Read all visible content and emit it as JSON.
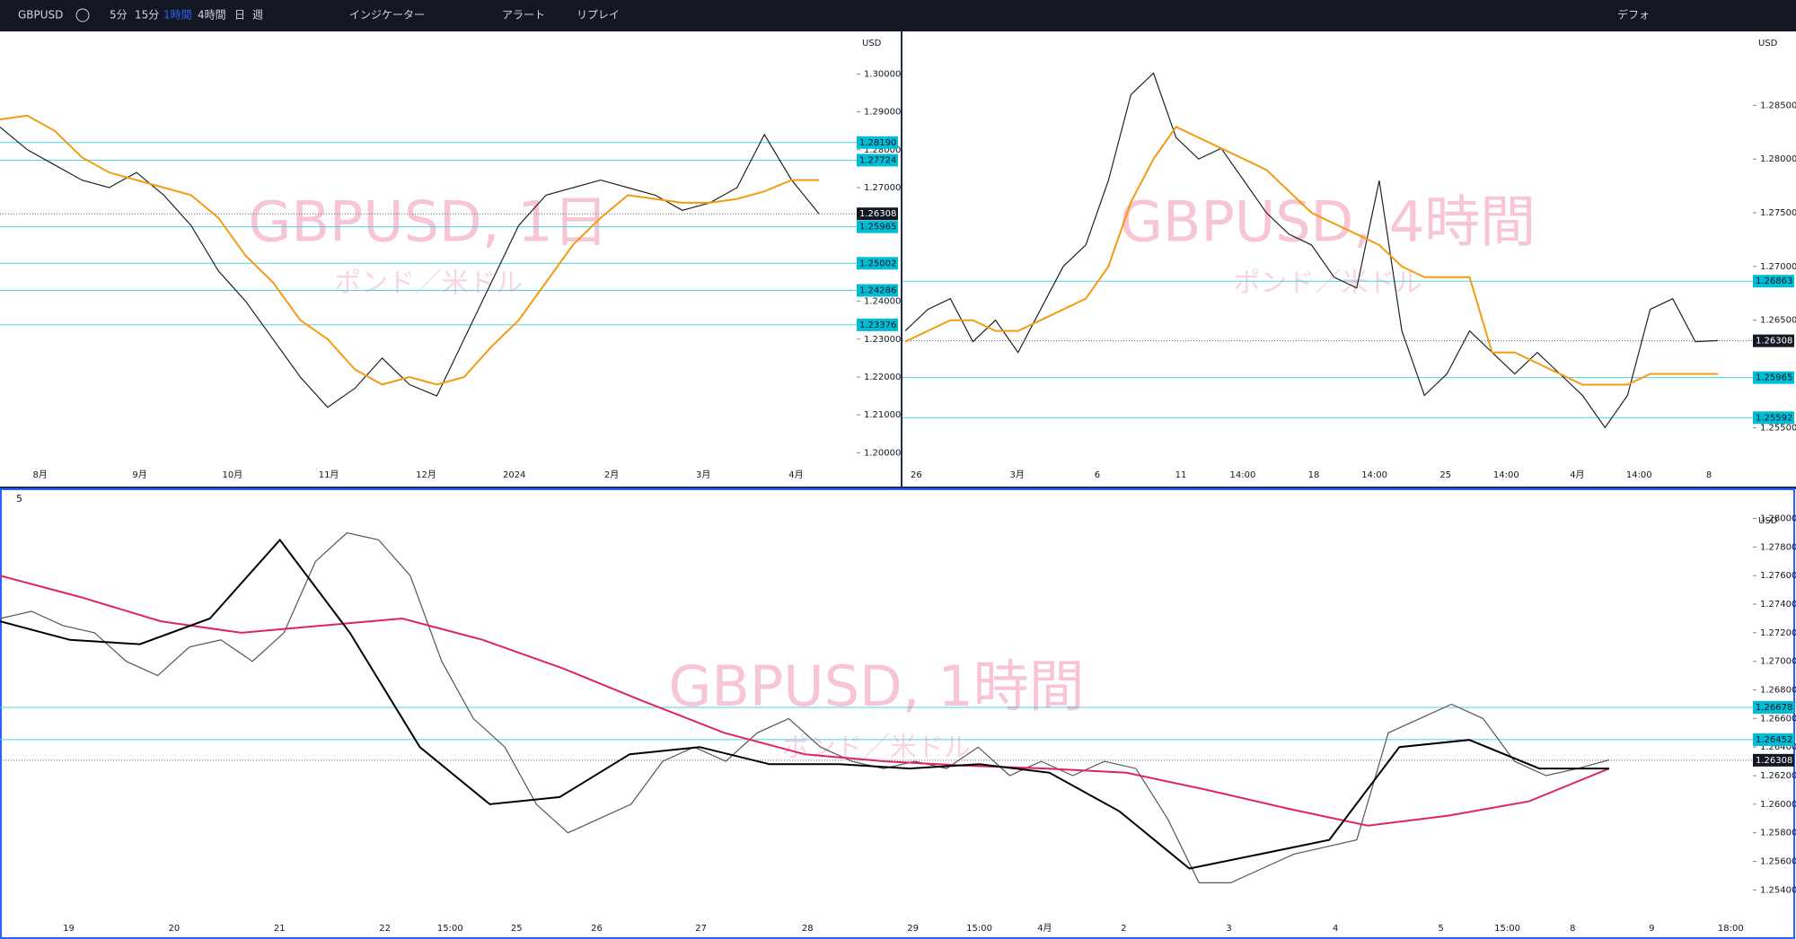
{
  "toolbar": {
    "symbol": "GBPUSD",
    "intervals": [
      "5分",
      "15分",
      "1時間",
      "4時間",
      "日",
      "週"
    ],
    "active_interval": 2,
    "indicators": "インジケーター",
    "alert": "アラート",
    "replay": "リプレイ",
    "layout": "デフォ"
  },
  "chart_data": [
    {
      "type": "line",
      "title": "GBPUSD, 1日",
      "subtitle": "ポンド／米ドル",
      "currency": "USD",
      "xlabels": [
        "8月",
        "9月",
        "10月",
        "11月",
        "12月",
        "2024",
        "2月",
        "3月",
        "4月"
      ],
      "ylim": [
        1.197,
        1.311
      ],
      "yticks": [
        {
          "value": 1.2,
          "label": "1.20000"
        },
        {
          "value": 1.21,
          "label": "1.21000"
        },
        {
          "value": 1.22,
          "label": "1.22000"
        },
        {
          "value": 1.23,
          "label": "1.23000"
        },
        {
          "value": 1.24,
          "label": "1.24000"
        },
        {
          "value": 1.27,
          "label": "1.27000"
        },
        {
          "value": 1.28,
          "label": "1.28000"
        },
        {
          "value": 1.29,
          "label": "1.29000"
        },
        {
          "value": 1.3,
          "label": "1.30000"
        }
      ],
      "levels": [
        {
          "value": 1.2819,
          "label": "1.28190"
        },
        {
          "value": 1.27724,
          "label": "1.27724"
        },
        {
          "value": 1.25965,
          "label": "1.25965"
        },
        {
          "value": 1.25002,
          "label": "1.25002"
        },
        {
          "value": 1.24286,
          "label": "1.24286"
        },
        {
          "value": 1.23376,
          "label": "1.23376"
        }
      ],
      "last": {
        "value": 1.26308,
        "label": "1.26308"
      },
      "series": [
        {
          "color": "#222222",
          "values": [
            1.286,
            1.28,
            1.276,
            1.272,
            1.27,
            1.274,
            1.268,
            1.26,
            1.248,
            1.24,
            1.23,
            1.22,
            1.212,
            1.217,
            1.225,
            1.218,
            1.215,
            1.23,
            1.245,
            1.26,
            1.268,
            1.27,
            1.272,
            1.27,
            1.268,
            1.264,
            1.266,
            1.27,
            1.284,
            1.272,
            1.2631
          ]
        },
        {
          "color": "#f39c12",
          "values": [
            1.288,
            1.289,
            1.285,
            1.278,
            1.274,
            1.272,
            1.27,
            1.268,
            1.262,
            1.252,
            1.245,
            1.235,
            1.23,
            1.222,
            1.218,
            1.22,
            1.218,
            1.22,
            1.228,
            1.235,
            1.245,
            1.255,
            1.262,
            1.268,
            1.267,
            1.266,
            1.266,
            1.267,
            1.269,
            1.272,
            1.272
          ]
        }
      ]
    },
    {
      "type": "line",
      "title": "GBPUSD, 4時間",
      "subtitle": "ポンド／米ドル",
      "currency": "USD",
      "xlabels": [
        "26",
        "3月",
        "6",
        "11",
        "14:00",
        "18",
        "14:00",
        "25",
        "14:00",
        "4月",
        "14:00",
        "8"
      ],
      "ylim": [
        1.2516,
        1.2918
      ],
      "yticks": [
        {
          "value": 1.255,
          "label": "1.25500"
        },
        {
          "value": 1.265,
          "label": "1.26500"
        },
        {
          "value": 1.27,
          "label": "1.27000"
        },
        {
          "value": 1.275,
          "label": "1.27500"
        },
        {
          "value": 1.28,
          "label": "1.28000"
        },
        {
          "value": 1.285,
          "label": "1.28500"
        }
      ],
      "levels": [
        {
          "value": 1.26863,
          "label": "1.26863"
        },
        {
          "value": 1.25965,
          "label": "1.25965"
        },
        {
          "value": 1.25592,
          "label": "1.25592"
        }
      ],
      "last": {
        "value": 1.26308,
        "label": "1.26308"
      },
      "series": [
        {
          "color": "#222222",
          "values": [
            1.264,
            1.266,
            1.267,
            1.263,
            1.265,
            1.262,
            1.266,
            1.27,
            1.272,
            1.278,
            1.286,
            1.288,
            1.282,
            1.28,
            1.281,
            1.278,
            1.275,
            1.273,
            1.272,
            1.269,
            1.268,
            1.278,
            1.264,
            1.258,
            1.26,
            1.264,
            1.262,
            1.26,
            1.262,
            1.26,
            1.258,
            1.255,
            1.258,
            1.266,
            1.267,
            1.263,
            1.2631
          ]
        },
        {
          "color": "#f39c12",
          "values": [
            1.263,
            1.264,
            1.265,
            1.265,
            1.264,
            1.264,
            1.265,
            1.266,
            1.267,
            1.27,
            1.276,
            1.28,
            1.283,
            1.282,
            1.281,
            1.28,
            1.279,
            1.277,
            1.275,
            1.274,
            1.273,
            1.272,
            1.27,
            1.269,
            1.269,
            1.269,
            1.262,
            1.262,
            1.261,
            1.26,
            1.259,
            1.259,
            1.259,
            1.26,
            1.26,
            1.26,
            1.26
          ]
        }
      ]
    },
    {
      "type": "line",
      "title": "GBPUSD, 1時間",
      "subtitle": "ポンド／米ドル",
      "currency": "USD",
      "legend": "5",
      "xlabels": [
        "19",
        "20",
        "21",
        "22",
        "15:00",
        "25",
        "26",
        "27",
        "28",
        "29",
        "15:00",
        "4月",
        "2",
        "3",
        "4",
        "5",
        "15:00",
        "8",
        "9",
        "18:00"
      ],
      "ylim": [
        1.2522,
        1.2806
      ],
      "yticks": [
        {
          "value": 1.254,
          "label": "1.25400"
        },
        {
          "value": 1.256,
          "label": "1.25600"
        },
        {
          "value": 1.258,
          "label": "1.25800"
        },
        {
          "value": 1.26,
          "label": "1.26000"
        },
        {
          "value": 1.262,
          "label": "1.26200"
        },
        {
          "value": 1.264,
          "label": "1.26400"
        },
        {
          "value": 1.266,
          "label": "1.26600"
        },
        {
          "value": 1.268,
          "label": "1.26800"
        },
        {
          "value": 1.27,
          "label": "1.27000"
        },
        {
          "value": 1.272,
          "label": "1.27200"
        },
        {
          "value": 1.274,
          "label": "1.27400"
        },
        {
          "value": 1.276,
          "label": "1.27600"
        },
        {
          "value": 1.278,
          "label": "1.27800"
        },
        {
          "value": 1.28,
          "label": "1.28000"
        }
      ],
      "levels": [
        {
          "value": 1.26678,
          "label": "1.26678"
        },
        {
          "value": 1.26452,
          "label": "1.26452"
        }
      ],
      "last": {
        "value": 1.26308,
        "label": "1.26308"
      },
      "series": [
        {
          "color": "#555555",
          "values": [
            1.273,
            1.2735,
            1.2725,
            1.272,
            1.27,
            1.269,
            1.271,
            1.2715,
            1.27,
            1.272,
            1.277,
            1.279,
            1.2785,
            1.276,
            1.27,
            1.266,
            1.264,
            1.26,
            1.258,
            1.259,
            1.26,
            1.263,
            1.264,
            1.263,
            1.265,
            1.266,
            1.264,
            1.263,
            1.2625,
            1.263,
            1.2625,
            1.264,
            1.262,
            1.263,
            1.262,
            1.263,
            1.2625,
            1.259,
            1.2545,
            1.2545,
            1.2555,
            1.2565,
            1.257,
            1.2575,
            1.265,
            1.266,
            1.267,
            1.266,
            1.263,
            1.262,
            1.2625,
            1.2631
          ]
        },
        {
          "color": "#e0245e",
          "values": [
            1.276,
            1.2745,
            1.2728,
            1.272,
            1.2725,
            1.273,
            1.2715,
            1.2695,
            1.2672,
            1.265,
            1.2635,
            1.263,
            1.2627,
            1.2625,
            1.2622,
            1.261,
            1.2597,
            1.2585,
            1.2592,
            1.2602,
            1.2625
          ]
        },
        {
          "color": "#000000",
          "values": [
            1.2728,
            1.2715,
            1.2712,
            1.273,
            1.2785,
            1.272,
            1.264,
            1.26,
            1.2605,
            1.2635,
            1.264,
            1.2628,
            1.2628,
            1.2625,
            1.2628,
            1.2622,
            1.2595,
            1.2555,
            1.2565,
            1.2575,
            1.264,
            1.2645,
            1.2625,
            1.2625
          ]
        }
      ]
    }
  ]
}
